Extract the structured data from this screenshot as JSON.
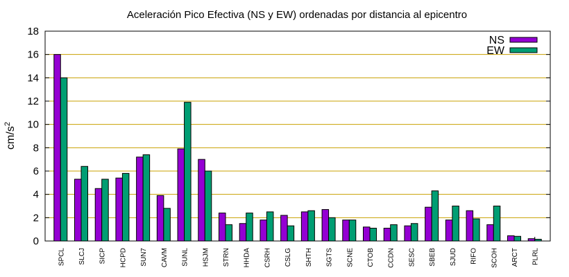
{
  "chart_data": {
    "type": "bar",
    "title": "Aceleración Pico Efectiva (NS y EW) ordenadas por distancia al epicentro",
    "ylabel": "cm/s",
    "ylabel_superscript": "2",
    "xlabel": "",
    "ylim": [
      0,
      18
    ],
    "yticks": [
      0,
      2,
      4,
      6,
      8,
      10,
      12,
      14,
      16,
      18
    ],
    "grid": "horizontal",
    "legend_position": "top-right",
    "categories": [
      "SPCL",
      "SLCJ",
      "SICP",
      "HCPD",
      "SUN7",
      "CAVM",
      "SUNL",
      "HSJM",
      "STRN",
      "HHDA",
      "CSRH",
      "CSLG",
      "SHTH",
      "SGTS",
      "SCNE",
      "CTOB",
      "CCDN",
      "SESC",
      "SBEB",
      "SJUD",
      "RIFO",
      "SCOH",
      "ARCT",
      "PLRL"
    ],
    "series": [
      {
        "name": "NS",
        "color": "#9400d3",
        "values": [
          16.0,
          5.3,
          4.5,
          5.4,
          7.2,
          3.9,
          7.9,
          7.0,
          2.4,
          1.5,
          1.8,
          2.2,
          2.5,
          2.7,
          1.8,
          1.2,
          1.1,
          1.3,
          2.9,
          1.8,
          2.6,
          1.4,
          0.45,
          0.2
        ]
      },
      {
        "name": "EW",
        "color": "#009e73",
        "values": [
          14.0,
          6.4,
          5.3,
          5.8,
          7.4,
          2.8,
          11.9,
          6.0,
          1.4,
          2.4,
          2.5,
          1.3,
          2.6,
          2.0,
          1.8,
          1.1,
          1.4,
          1.5,
          4.3,
          3.0,
          1.9,
          3.0,
          0.4,
          0.15
        ]
      }
    ],
    "grid_color": "#c8a000",
    "bar_outline_color": "#000000"
  }
}
